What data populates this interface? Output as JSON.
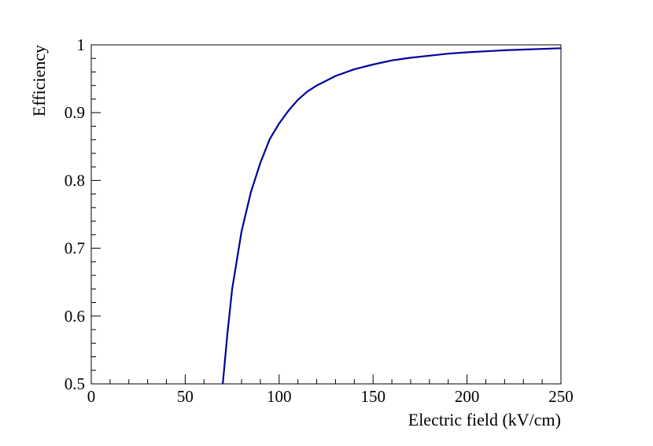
{
  "chart_data": {
    "type": "line",
    "title": "",
    "xlabel": "Electric field (kV/cm)",
    "ylabel": "Efficiency",
    "xlim": [
      0,
      250
    ],
    "ylim": [
      0.5,
      1.0
    ],
    "xticks": [
      0,
      50,
      100,
      150,
      200,
      250
    ],
    "xtick_labels": [
      "0",
      "50",
      "100",
      "150",
      "200",
      "250"
    ],
    "yticks": [
      0.5,
      0.6,
      0.7,
      0.8,
      0.9,
      1.0
    ],
    "ytick_labels": [
      "0.5",
      "0.6",
      "0.7",
      "0.8",
      "0.9",
      "1"
    ],
    "grid": false,
    "legend": "none",
    "line_color": "#000099",
    "series": [
      {
        "x": [
          70,
          72.5,
          75,
          80,
          85,
          90,
          95,
          100,
          105,
          110,
          115,
          120,
          130,
          140,
          150,
          160,
          170,
          180,
          190,
          200,
          210,
          220,
          230,
          240,
          250
        ],
        "y": [
          0.5,
          0.575,
          0.64,
          0.725,
          0.783,
          0.826,
          0.861,
          0.884,
          0.903,
          0.919,
          0.931,
          0.94,
          0.954,
          0.964,
          0.971,
          0.977,
          0.981,
          0.984,
          0.987,
          0.989,
          0.9905,
          0.992,
          0.993,
          0.994,
          0.995
        ]
      }
    ]
  }
}
